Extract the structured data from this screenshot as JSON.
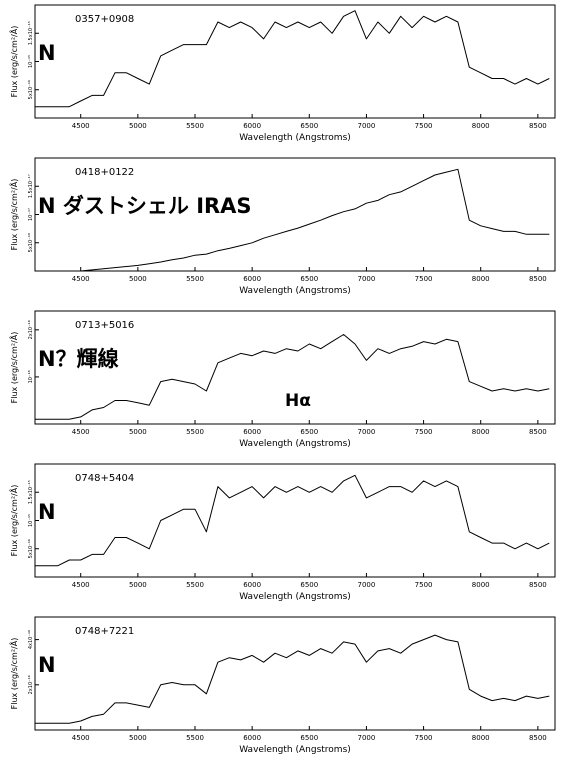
{
  "chart_data": [
    {
      "type": "line",
      "title": "0357+0908",
      "annotations": [
        "N"
      ],
      "xlabel": "Wavelength (Angstroms)",
      "ylabel": "Flux (erg/s/cm²/Å)",
      "color": "#000000",
      "x": [
        4100,
        4200,
        4300,
        4400,
        4500,
        4600,
        4700,
        4800,
        4900,
        5000,
        5100,
        5200,
        5300,
        5400,
        5500,
        5600,
        5700,
        5800,
        5900,
        6000,
        6100,
        6200,
        6300,
        6400,
        6500,
        6600,
        6700,
        6800,
        6900,
        7000,
        7100,
        7200,
        7300,
        7400,
        7500,
        7600,
        7700,
        7800,
        7900,
        8000,
        8100,
        8200,
        8300,
        8400,
        8500,
        8600
      ],
      "values": [
        2e-16,
        2e-16,
        2e-16,
        2e-16,
        3e-16,
        4e-16,
        4e-16,
        8e-16,
        8e-16,
        7e-16,
        6e-16,
        1.1e-15,
        1.2e-15,
        1.3e-15,
        1.3e-15,
        1.3e-15,
        1.7e-15,
        1.6e-15,
        1.7e-15,
        1.6e-15,
        1.4e-15,
        1.7e-15,
        1.6e-15,
        1.7e-15,
        1.6e-15,
        1.7e-15,
        1.5e-15,
        1.8e-15,
        1.9e-15,
        1.4e-15,
        1.7e-15,
        1.5e-15,
        1.8e-15,
        1.6e-15,
        1.8e-15,
        1.7e-15,
        1.8e-15,
        1.7e-15,
        9e-16,
        8e-16,
        7e-16,
        7e-16,
        6e-16,
        7e-16,
        6e-16,
        7e-16
      ],
      "xlim": [
        4100,
        8650
      ],
      "xticks": [
        4500,
        5000,
        5500,
        6000,
        6500,
        7000,
        7500,
        8000,
        8500
      ],
      "ylim": [
        0,
        2e-15
      ],
      "yticks": [
        {
          "value": 5e-16,
          "label": "5x10⁻¹⁶"
        },
        {
          "value": 1e-15,
          "label": "10⁻¹⁵"
        },
        {
          "value": 1.5e-15,
          "label": "1.5x10⁻¹⁵"
        }
      ]
    },
    {
      "type": "line",
      "title": "0418+0122",
      "annotations": [
        "N ダストシェル IRAS"
      ],
      "xlabel": "Wavelength (Angstroms)",
      "ylabel": "Flux (erg/s/cm²/Å)",
      "color": "#000000",
      "x": [
        4100,
        4200,
        4300,
        4400,
        4500,
        4600,
        4700,
        4800,
        4900,
        5000,
        5100,
        5200,
        5300,
        5400,
        5500,
        5600,
        5700,
        5800,
        5900,
        6000,
        6100,
        6200,
        6300,
        6400,
        6500,
        6600,
        6700,
        6800,
        6900,
        7000,
        7100,
        7200,
        7300,
        7400,
        7500,
        7600,
        7700,
        7800,
        7900,
        8000,
        8100,
        8200,
        8300,
        8400,
        8500,
        8600
      ],
      "values": [
        0,
        0,
        0,
        0,
        0,
        2e-19,
        4e-19,
        6e-19,
        8e-19,
        1e-18,
        1.3e-18,
        1.6e-18,
        2e-18,
        2.3e-18,
        2.8e-18,
        3e-18,
        3.6e-18,
        4e-18,
        4.5e-18,
        5e-18,
        5.8e-18,
        6.4e-18,
        7e-18,
        7.6e-18,
        8.3e-18,
        9e-18,
        9.8e-18,
        1.05e-17,
        1.1e-17,
        1.2e-17,
        1.25e-17,
        1.35e-17,
        1.4e-17,
        1.5e-17,
        1.6e-17,
        1.7e-17,
        1.75e-17,
        1.8e-17,
        9e-18,
        8e-18,
        7.5e-18,
        7e-18,
        7e-18,
        6.5e-18,
        6.5e-18,
        6.5e-18
      ],
      "xlim": [
        4100,
        8650
      ],
      "xticks": [
        4500,
        5000,
        5500,
        6000,
        6500,
        7000,
        7500,
        8000,
        8500
      ],
      "ylim": [
        0,
        2e-17
      ],
      "yticks": [
        {
          "value": 5e-18,
          "label": "5x10⁻¹⁸"
        },
        {
          "value": 1e-17,
          "label": "10⁻¹⁷"
        },
        {
          "value": 1.5e-17,
          "label": "1.5x10⁻¹⁷"
        }
      ]
    },
    {
      "type": "line",
      "title": "0713+5016",
      "annotations": [
        "N？輝線",
        "Hα"
      ],
      "xlabel": "Wavelength (Angstroms)",
      "ylabel": "Flux (erg/s/cm²/Å)",
      "color": "#000000",
      "x": [
        4100,
        4200,
        4300,
        4400,
        4500,
        4600,
        4700,
        4800,
        4900,
        5000,
        5100,
        5200,
        5300,
        5400,
        5500,
        5600,
        5700,
        5800,
        5900,
        6000,
        6100,
        6200,
        6300,
        6400,
        6500,
        6600,
        6700,
        6800,
        6900,
        7000,
        7100,
        7200,
        7300,
        7400,
        7500,
        7600,
        7700,
        7800,
        7900,
        8000,
        8100,
        8200,
        8300,
        8400,
        8500,
        8600
      ],
      "values": [
        1e-17,
        1e-17,
        1e-17,
        1e-17,
        1.5e-17,
        3e-17,
        3.5e-17,
        5e-17,
        5e-17,
        4.5e-17,
        4e-17,
        9e-17,
        9.5e-17,
        9e-17,
        8.5e-17,
        7e-17,
        1.3e-16,
        1.4e-16,
        1.5e-16,
        1.45e-16,
        1.55e-16,
        1.5e-16,
        1.6e-16,
        1.55e-16,
        1.7e-16,
        1.6e-16,
        1.75e-16,
        1.9e-16,
        1.7e-16,
        1.35e-16,
        1.6e-16,
        1.5e-16,
        1.6e-16,
        1.65e-16,
        1.75e-16,
        1.7e-16,
        1.8e-16,
        1.75e-16,
        9e-17,
        8e-17,
        7e-17,
        7.5e-17,
        7e-17,
        7.5e-17,
        7e-17,
        7.5e-17
      ],
      "xlim": [
        4100,
        8650
      ],
      "xticks": [
        4500,
        5000,
        5500,
        6000,
        6500,
        7000,
        7500,
        8000,
        8500
      ],
      "ylim": [
        0,
        2.4e-16
      ],
      "yticks": [
        {
          "value": 1e-16,
          "label": "10⁻¹⁶"
        },
        {
          "value": 2e-16,
          "label": "2x10⁻¹⁶"
        }
      ]
    },
    {
      "type": "line",
      "title": "0748+5404",
      "annotations": [
        "N"
      ],
      "xlabel": "Wavelength (Angstroms)",
      "ylabel": "Flux (erg/s/cm²/Å)",
      "color": "#000000",
      "x": [
        4100,
        4200,
        4300,
        4400,
        4500,
        4600,
        4700,
        4800,
        4900,
        5000,
        5100,
        5200,
        5300,
        5400,
        5500,
        5600,
        5700,
        5800,
        5900,
        6000,
        6100,
        6200,
        6300,
        6400,
        6500,
        6600,
        6700,
        6800,
        6900,
        7000,
        7100,
        7200,
        7300,
        7400,
        7500,
        7600,
        7700,
        7800,
        7900,
        8000,
        8100,
        8200,
        8300,
        8400,
        8500,
        8600
      ],
      "values": [
        2e-16,
        2e-16,
        2e-16,
        3e-16,
        3e-16,
        4e-16,
        4e-16,
        7e-16,
        7e-16,
        6e-16,
        5e-16,
        1e-15,
        1.1e-15,
        1.2e-15,
        1.2e-15,
        8e-16,
        1.6e-15,
        1.4e-15,
        1.5e-15,
        1.6e-15,
        1.4e-15,
        1.6e-15,
        1.5e-15,
        1.6e-15,
        1.5e-15,
        1.6e-15,
        1.5e-15,
        1.7e-15,
        1.8e-15,
        1.4e-15,
        1.5e-15,
        1.6e-15,
        1.6e-15,
        1.5e-15,
        1.7e-15,
        1.6e-15,
        1.7e-15,
        1.6e-15,
        8e-16,
        7e-16,
        6e-16,
        6e-16,
        5e-16,
        6e-16,
        5e-16,
        6e-16
      ],
      "xlim": [
        4100,
        8650
      ],
      "xticks": [
        4500,
        5000,
        5500,
        6000,
        6500,
        7000,
        7500,
        8000,
        8500
      ],
      "ylim": [
        0,
        2e-15
      ],
      "yticks": [
        {
          "value": 5e-16,
          "label": "5x10⁻¹⁶"
        },
        {
          "value": 1e-15,
          "label": "10⁻¹⁵"
        },
        {
          "value": 1.5e-15,
          "label": "1.5x10⁻¹⁵"
        }
      ]
    },
    {
      "type": "line",
      "title": "0748+7221",
      "annotations": [
        "N"
      ],
      "xlabel": "Wavelength (Angstroms)",
      "ylabel": "Flux (erg/s/cm²/Å)",
      "color": "#000000",
      "x": [
        4100,
        4200,
        4300,
        4400,
        4500,
        4600,
        4700,
        4800,
        4900,
        5000,
        5100,
        5200,
        5300,
        5400,
        5500,
        5600,
        5700,
        5800,
        5900,
        6000,
        6100,
        6200,
        6300,
        6400,
        6500,
        6600,
        6700,
        6800,
        6900,
        7000,
        7100,
        7200,
        7300,
        7400,
        7500,
        7600,
        7700,
        7800,
        7900,
        8000,
        8100,
        8200,
        8300,
        8400,
        8500,
        8600
      ],
      "values": [
        3e-17,
        3e-17,
        3e-17,
        3e-17,
        4e-17,
        6e-17,
        7e-17,
        1.2e-16,
        1.2e-16,
        1.1e-16,
        1e-16,
        2e-16,
        2.1e-16,
        2e-16,
        2e-16,
        1.6e-16,
        3e-16,
        3.2e-16,
        3.1e-16,
        3.3e-16,
        3e-16,
        3.4e-16,
        3.2e-16,
        3.5e-16,
        3.3e-16,
        3.6e-16,
        3.4e-16,
        3.9e-16,
        3.8e-16,
        3e-16,
        3.5e-16,
        3.6e-16,
        3.4e-16,
        3.8e-16,
        4e-16,
        4.2e-16,
        4e-16,
        3.9e-16,
        1.8e-16,
        1.5e-16,
        1.3e-16,
        1.4e-16,
        1.3e-16,
        1.5e-16,
        1.4e-16,
        1.5e-16
      ],
      "xlim": [
        4100,
        8650
      ],
      "xticks": [
        4500,
        5000,
        5500,
        6000,
        6500,
        7000,
        7500,
        8000,
        8500
      ],
      "ylim": [
        0,
        5e-16
      ],
      "yticks": [
        {
          "value": 2e-16,
          "label": "2x10⁻¹⁶"
        },
        {
          "value": 4e-16,
          "label": "4x10⁻¹⁶"
        }
      ]
    }
  ]
}
